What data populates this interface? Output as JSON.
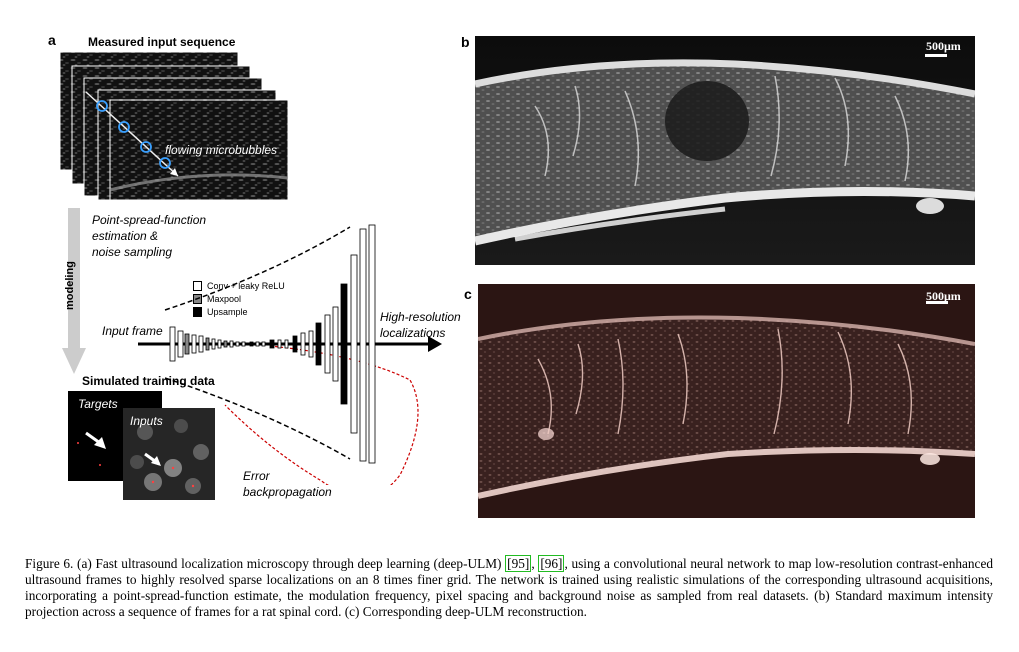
{
  "panel_a": {
    "letter": "a",
    "measured_title": "Measured input sequence",
    "flowing_label": "flowing microbubbles",
    "psf_label_lines": [
      "Point-spread-function",
      "estimation &",
      "noise sampling"
    ],
    "modeling_label": "modeling",
    "legend": [
      {
        "label": "Conv + leaky ReLU",
        "color": "#ffffff"
      },
      {
        "label": "Maxpool",
        "color": "#888888"
      },
      {
        "label": "Upsample",
        "color": "#000000"
      }
    ],
    "input_frame_label": "Input frame",
    "output_label_lines": [
      "High-resolution",
      "localizations"
    ],
    "simulated_title": "Simulated training data",
    "targets_label": "Targets",
    "inputs_label": "Inputs",
    "error_label_lines": [
      "Error",
      "backpropagation"
    ]
  },
  "panel_b": {
    "letter": "b",
    "scalebar": "500μm"
  },
  "panel_c": {
    "letter": "c",
    "scalebar": "500μm"
  },
  "caption": {
    "lead": "Figure 6.  (a) Fast ultrasound localization microscopy through deep learning (deep-ULM) ",
    "ref1": "[95]",
    "sep": ", ",
    "ref2": "[96]",
    "rest": ", using a convolutional neural network to map low-resolution contrast-enhanced ultrasound frames to highly resolved sparse localizations on an 8 times finer grid. The network is trained using realistic simulations of the corresponding ultrasound acquisitions, incorporating a point-spread-function estimate, the modulation frequency, pixel spacing and background noise as sampled from real datasets. (b) Standard maximum intensity projection across a sequence of frames for a rat spinal cord. (c) Corresponding deep-ULM reconstruction."
  }
}
